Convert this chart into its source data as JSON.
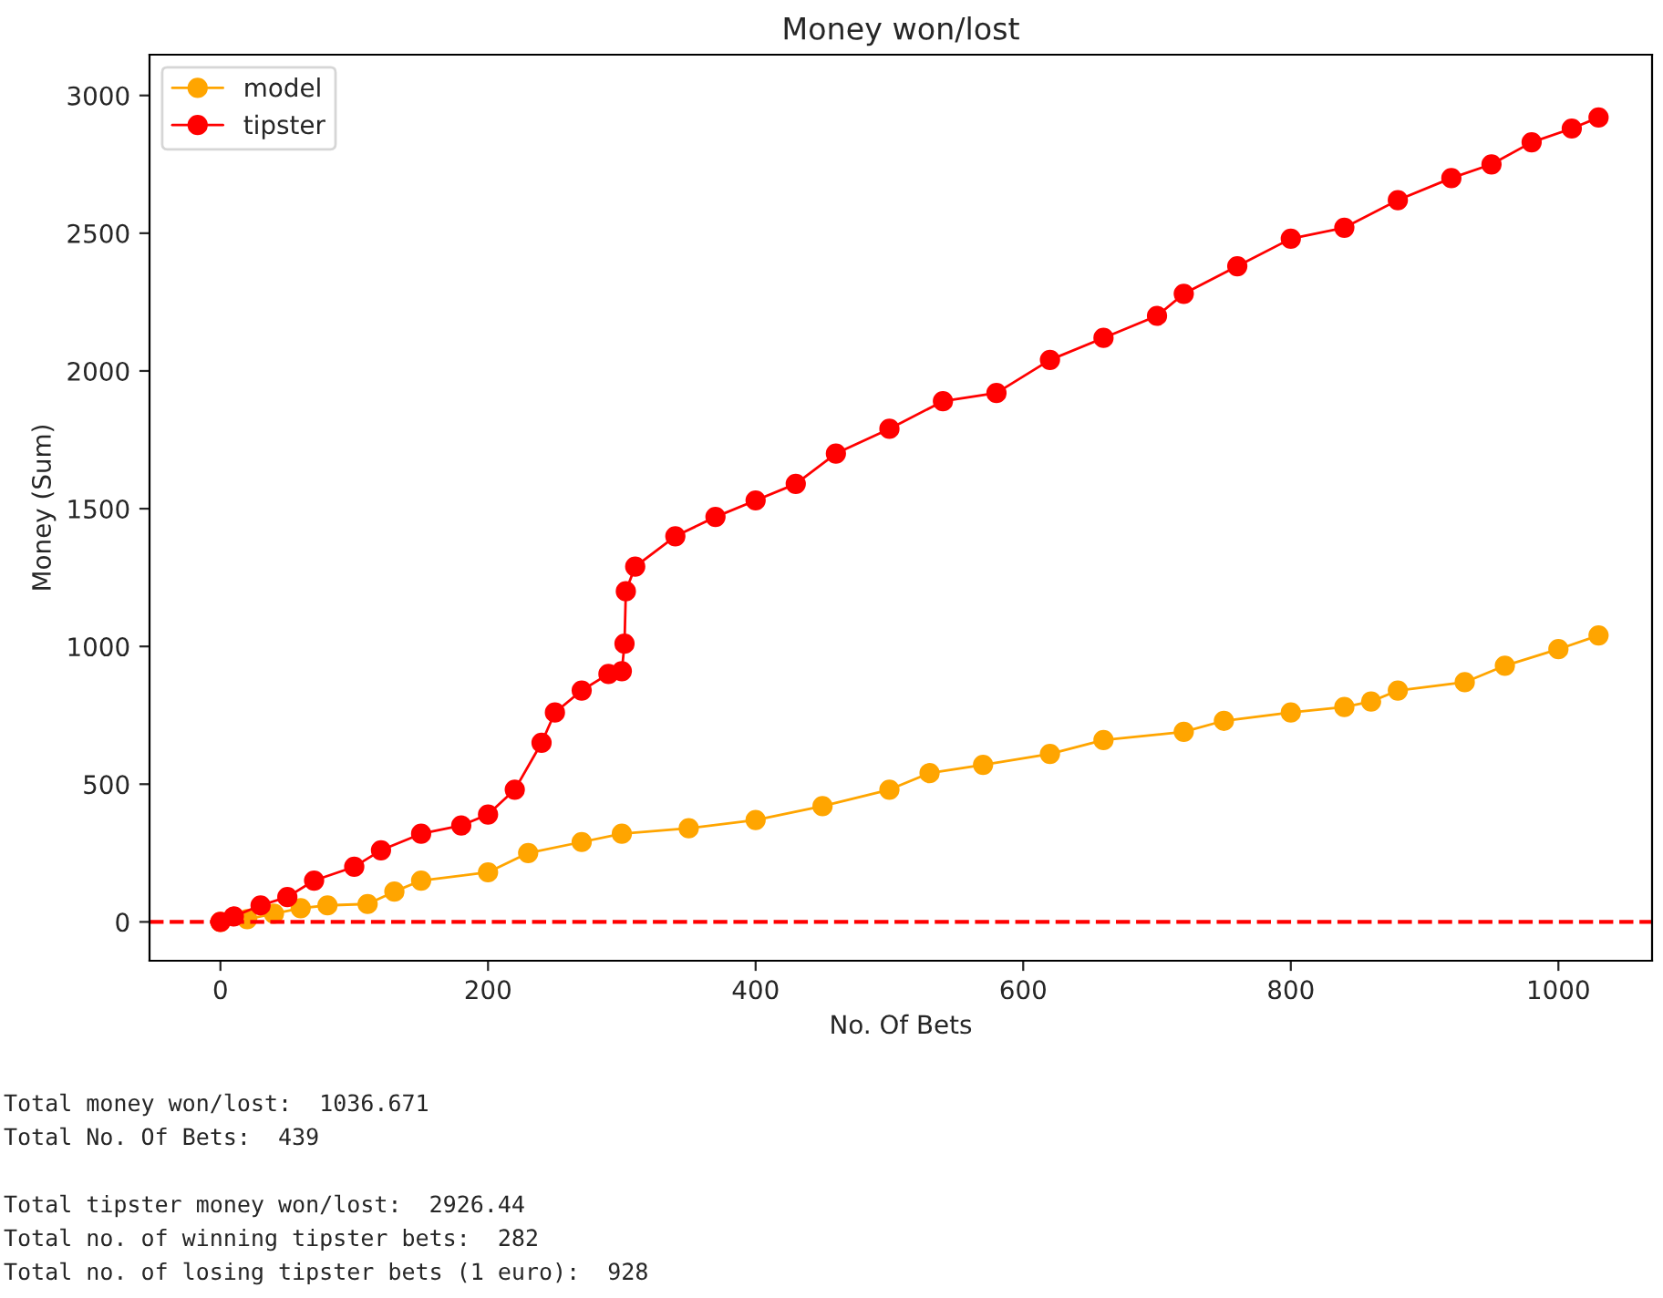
{
  "chart_data": {
    "type": "line",
    "title": "Money won/lost",
    "xlabel": "No. Of Bets",
    "ylabel": "Money (Sum)",
    "series": [
      {
        "name": "model",
        "color": "#ffa500",
        "x": [
          0,
          20,
          40,
          60,
          80,
          110,
          130,
          150,
          200,
          230,
          270,
          300,
          350,
          400,
          450,
          500,
          530,
          570,
          620,
          660,
          720,
          750,
          800,
          840,
          860,
          880,
          930,
          960,
          1000,
          1030
        ],
        "values": [
          0,
          10,
          30,
          50,
          60,
          65,
          110,
          150,
          180,
          250,
          290,
          320,
          340,
          370,
          420,
          480,
          540,
          570,
          610,
          660,
          690,
          730,
          760,
          780,
          800,
          840,
          870,
          930,
          990,
          1040
        ]
      },
      {
        "name": "tipster",
        "color": "#ff0000",
        "x": [
          0,
          10,
          30,
          50,
          70,
          100,
          120,
          150,
          180,
          200,
          220,
          240,
          250,
          270,
          290,
          300,
          302,
          303,
          310,
          340,
          370,
          400,
          430,
          460,
          500,
          540,
          580,
          620,
          660,
          700,
          720,
          760,
          800,
          840,
          880,
          920,
          950,
          980,
          1010,
          1030
        ],
        "values": [
          0,
          20,
          60,
          90,
          150,
          200,
          260,
          320,
          350,
          390,
          480,
          650,
          760,
          840,
          900,
          910,
          1010,
          1200,
          1290,
          1400,
          1470,
          1530,
          1590,
          1700,
          1790,
          1890,
          1920,
          2040,
          2120,
          2200,
          2280,
          2380,
          2480,
          2520,
          2620,
          2700,
          2750,
          2830,
          2880,
          2920
        ]
      }
    ],
    "xlim": [
      -53,
      1070
    ],
    "ylim": [
      -141,
      3148
    ],
    "xticks": [
      0,
      200,
      400,
      600,
      800,
      1000
    ],
    "yticks": [
      0,
      500,
      1000,
      1500,
      2000,
      2500,
      3000
    ],
    "ref_lines": [
      {
        "axis": "y",
        "value": 0,
        "color": "#ff0000",
        "line_style": "dashed"
      }
    ],
    "marker": "circle",
    "line_style": "solid",
    "legend": "top left",
    "grid": false,
    "annotations": [
      "Total money won/lost:  1036.671",
      "Total No. Of Bets:  439",
      "Total tipster money won/lost:  2926.44",
      "Total no. of winning tipster bets:  282",
      "Total no. of losing tipster bets (1 euro):  928"
    ]
  }
}
